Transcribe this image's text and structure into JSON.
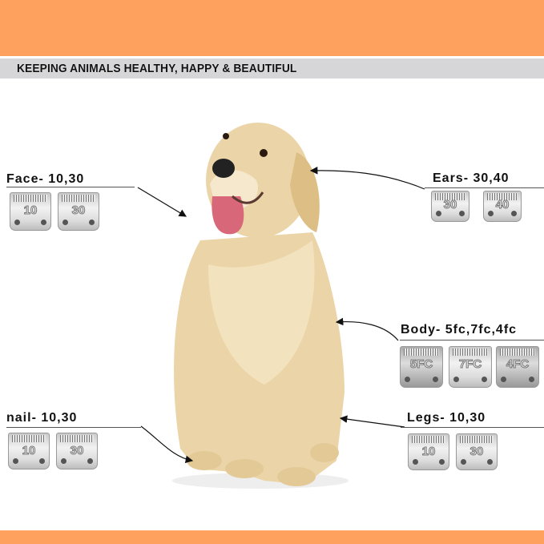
{
  "banner": {
    "text": "KEEPING ANIMALS HEALTHY, HAPPY & BEAUTIFUL"
  },
  "colors": {
    "accent": "#FFA15E",
    "banner_bg": "#D6D6D8",
    "dog": "#EBD5A8"
  },
  "sections": {
    "face": {
      "label": "Face- 10,30",
      "blades": [
        "10",
        "30"
      ]
    },
    "ears": {
      "label": "Ears- 30,40",
      "blades": [
        "30",
        "40"
      ]
    },
    "body": {
      "label": "Body- 5fc,7fc,4fc",
      "blades": [
        "5FC",
        "7FC",
        "4FC"
      ]
    },
    "nail": {
      "label": "nail- 10,30",
      "blades": [
        "10",
        "30"
      ]
    },
    "legs": {
      "label": "Legs- 10,30",
      "blades": [
        "10",
        "30"
      ]
    }
  }
}
